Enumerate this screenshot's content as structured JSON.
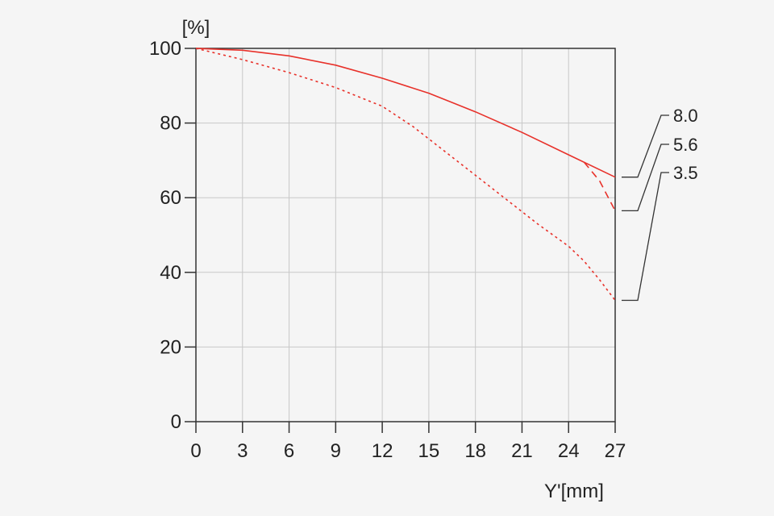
{
  "chart_data": {
    "type": "line",
    "title": "",
    "xlabel": "Y'[mm]",
    "ylabel": "[%]",
    "xlim": [
      0,
      27
    ],
    "ylim": [
      0,
      100
    ],
    "x_ticks": [
      0,
      3,
      6,
      9,
      12,
      15,
      18,
      21,
      24,
      27
    ],
    "y_ticks": [
      0,
      20,
      40,
      60,
      80,
      100
    ],
    "grid": true,
    "legend_placement": "right",
    "series": [
      {
        "name": "8.0",
        "color": "#e8312a",
        "style": "solid",
        "x": [
          0,
          3,
          6,
          9,
          12,
          15,
          18,
          21,
          24,
          27
        ],
        "y": [
          100,
          99.5,
          98,
          95.5,
          92,
          88,
          83,
          77.5,
          71.5,
          65.5
        ]
      },
      {
        "name": "5.6",
        "color": "#e8312a",
        "style": "dashed",
        "x": [
          25,
          26,
          27
        ],
        "y": [
          69.5,
          64.5,
          56.5
        ]
      },
      {
        "name": "3.5",
        "color": "#e8312a",
        "style": "dotted",
        "x": [
          0,
          3,
          6,
          9,
          12,
          14,
          16,
          18,
          20,
          22,
          24,
          25,
          26,
          27
        ],
        "y": [
          100,
          97,
          93.5,
          89.5,
          84.5,
          79,
          72.5,
          66,
          59.5,
          53,
          47,
          43,
          38,
          32.5
        ]
      }
    ]
  }
}
